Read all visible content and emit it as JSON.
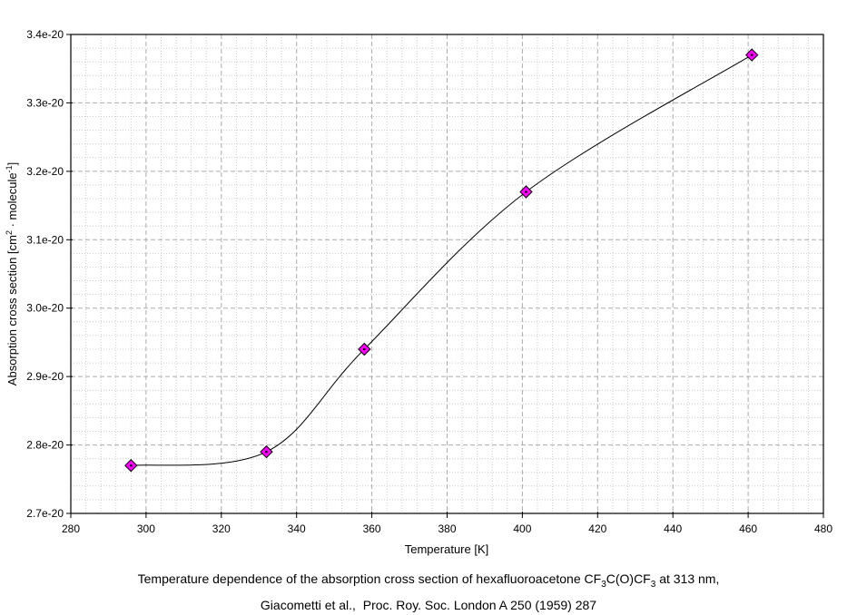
{
  "chart_data": {
    "type": "line",
    "title": "",
    "xlabel": "Temperature [K]",
    "ylabel_text": "Absorption cross section [cm2 · molecule-1]",
    "ylabel_parts": [
      {
        "t": "Absorption cross section [cm"
      },
      {
        "t": "2",
        "sup": true
      },
      {
        "t": " · molecule"
      },
      {
        "t": "-1",
        "sup": true
      },
      {
        "t": "]"
      }
    ],
    "x": [
      296,
      332,
      358,
      401,
      461
    ],
    "y": [
      2.77e-20,
      2.79e-20,
      2.94e-20,
      3.17e-20,
      3.37e-20
    ],
    "xlim": [
      280,
      480
    ],
    "ylim": [
      2.7e-20,
      3.4e-20
    ],
    "x_major_ticks": [
      280,
      300,
      320,
      340,
      360,
      380,
      400,
      420,
      440,
      460,
      480
    ],
    "x_tick_labels": [
      "280",
      "300",
      "320",
      "340",
      "360",
      "380",
      "400",
      "420",
      "440",
      "460",
      "480"
    ],
    "x_minor_step": 4,
    "y_major_ticks": [
      2.7e-20,
      2.8e-20,
      2.9e-20,
      3e-20,
      3.1e-20,
      3.2e-20,
      3.3e-20,
      3.4e-20
    ],
    "y_tick_labels": [
      "2.7e-20",
      "2.8e-20",
      "2.9e-20",
      "3.0e-20",
      "3.1e-20",
      "3.2e-20",
      "3.3e-20",
      "3.4e-20"
    ],
    "y_minor_step": 2e-22,
    "grid": {
      "major": true,
      "minor": true
    },
    "legend": "none",
    "line": {
      "color": "#000000",
      "width": 1,
      "smooth": true
    },
    "marker": {
      "shape": "diamond",
      "fill": "#ff00ff",
      "edge": "#000000",
      "size": 13,
      "center_dot": "#000000"
    },
    "colors": {
      "background": "#ffffff",
      "axis": "#000000",
      "major_grid": "#ababab",
      "minor_grid": "#cccccc",
      "text": "#000000"
    }
  },
  "caption": {
    "line1_text": "Temperature dependence of the absorption cross section of hexafluoroacetone CF3C(O)CF3 at 313 nm,",
    "line1_parts": [
      {
        "t": "Temperature dependence of the absorption cross section of hexafluoroacetone CF"
      },
      {
        "t": "3",
        "sub": true
      },
      {
        "t": "C(O)CF"
      },
      {
        "t": "3",
        "sub": true
      },
      {
        "t": " at 313 nm,"
      }
    ],
    "line2": "Giacometti et al.,  Proc. Roy. Soc. London A 250 (1959) 287"
  }
}
